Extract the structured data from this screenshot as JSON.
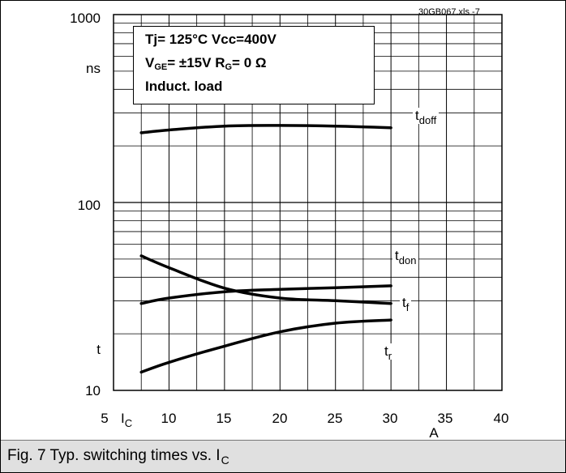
{
  "file_tag": "30GB067.xls  -7",
  "info_box": {
    "line1": "Tj= 125°C  Vcc=400V",
    "line2_v": "V",
    "line2_v_sub": "GE",
    "line2_mid": "= ±15V  R",
    "line2_r_sub": "G",
    "line2_end": "=  0 Ω",
    "line3": "Induct. load"
  },
  "y_axis": {
    "unit_label": "ns",
    "quantity_label": "t"
  },
  "x_axis": {
    "quantity_main": "I",
    "quantity_sub": "C",
    "unit_label": "A"
  },
  "caption": {
    "text": "Fig. 7 Typ. switching times vs. I",
    "sub": "C"
  },
  "labels": {
    "tdoff": {
      "main": "t",
      "sub": "doff"
    },
    "tdon": {
      "main": "t",
      "sub": "don"
    },
    "tf": {
      "main": "t",
      "sub": "f"
    },
    "tr": {
      "main": "t",
      "sub": "r"
    }
  },
  "chart_data": {
    "type": "line",
    "x_scale": "linear",
    "y_scale": "log",
    "xlim": [
      5,
      40
    ],
    "ylim": [
      10,
      1000
    ],
    "x_ticks": [
      5,
      10,
      15,
      20,
      25,
      30,
      35,
      40
    ],
    "y_tick_labels": [
      "10",
      "100",
      "1000"
    ],
    "y_ticks": [
      10,
      100,
      1000
    ],
    "grid": true,
    "series": [
      {
        "name": "tdoff",
        "x": [
          7.5,
          10,
          15,
          20,
          25,
          30
        ],
        "y": [
          235,
          243,
          255,
          257,
          255,
          250
        ]
      },
      {
        "name": "tdon",
        "x": [
          7.5,
          10,
          15,
          20,
          25,
          30
        ],
        "y": [
          52,
          45,
          35,
          31,
          30,
          29
        ]
      },
      {
        "name": "tf",
        "x": [
          7.5,
          10,
          15,
          20,
          25,
          30
        ],
        "y": [
          29,
          31,
          33.5,
          34.5,
          35.2,
          36
        ]
      },
      {
        "name": "tr",
        "x": [
          7.5,
          10,
          15,
          20,
          25,
          30
        ],
        "y": [
          12.5,
          14.1,
          17.2,
          20.5,
          22.8,
          23.7
        ]
      }
    ]
  }
}
